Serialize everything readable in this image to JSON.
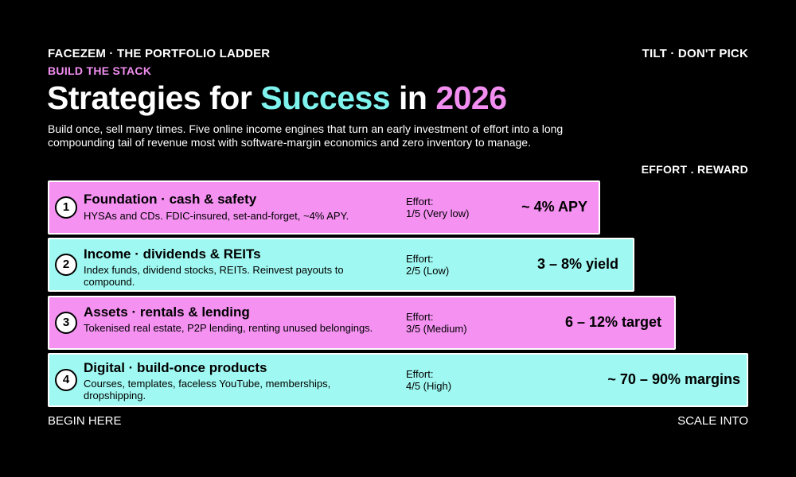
{
  "header": {
    "brand": "FACEZEM · THE PORTFOLIO LADDER",
    "tagline": "TILT · DON'T PICK",
    "kicker": "BUILD THE STACK",
    "title_part1": "Strategies for ",
    "title_part2": "Success",
    "title_part3": " in ",
    "title_part4": "2026",
    "subtitle": "Build once, sell many times. Five online income engines that turn an early investment of effort into a long compounding tail of revenue most with software-margin economics and zero inventory to manage.",
    "effort_reward_label": "EFFORT . REWARD"
  },
  "rungs": [
    {
      "number": "1",
      "name": "Foundation · cash & safety",
      "description": "HYSAs and CDs. FDIC-insured, set-and-forget, ~4% APY.",
      "effort_label": "Effort:",
      "effort_value": "1/5 (Very low)",
      "effort_level": 1,
      "reward": "~ 4% APY",
      "color": "#f491f1"
    },
    {
      "number": "2",
      "name": "Income · dividends & REITs",
      "description": "Index funds, dividend stocks, REITs. Reinvest payouts to compound.",
      "effort_label": "Effort:",
      "effort_value": "2/5 (Low)",
      "effort_level": 2,
      "reward": "3 – 8% yield",
      "color": "#9ff8f1"
    },
    {
      "number": "3",
      "name": "Assets · rentals & lending",
      "description": "Tokenised real estate, P2P lending, renting unused belongings.",
      "effort_label": "Effort:",
      "effort_value": "3/5 (Medium)",
      "effort_level": 3,
      "reward": "6 – 12% target",
      "color": "#f491f1"
    },
    {
      "number": "4",
      "name": "Digital · build-once products",
      "description": "Courses, templates, faceless YouTube, memberships, dropshipping.",
      "effort_label": "Effort:",
      "effort_value": "4/5 (High)",
      "effort_level": 4,
      "reward": "~ 70 – 90% margins",
      "color": "#9ff8f1"
    }
  ],
  "footer": {
    "left": "BEGIN HERE",
    "right": "SCALE INTO"
  },
  "colors": {
    "background": "#000000",
    "pink": "#f491f1",
    "cyan": "#9ff8f1",
    "kicker": "#f28ef0",
    "title_accent_cyan": "#7ff3ee"
  }
}
